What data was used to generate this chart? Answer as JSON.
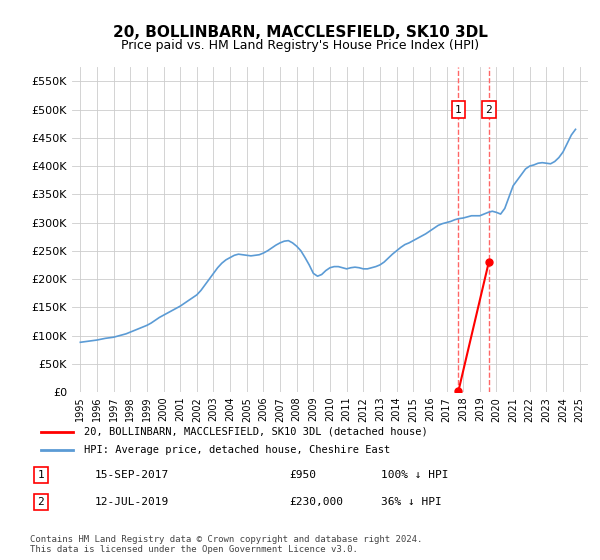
{
  "title": "20, BOLLINBARN, MACCLESFIELD, SK10 3DL",
  "subtitle": "Price paid vs. HM Land Registry's House Price Index (HPI)",
  "title_fontsize": 12,
  "subtitle_fontsize": 10,
  "ylim": [
    0,
    575000
  ],
  "yticks": [
    0,
    50000,
    100000,
    150000,
    200000,
    250000,
    300000,
    350000,
    400000,
    450000,
    500000,
    550000
  ],
  "ytick_labels": [
    "£0",
    "£50K",
    "£100K",
    "£150K",
    "£200K",
    "£250K",
    "£300K",
    "£350K",
    "£400K",
    "£450K",
    "£500K",
    "£550K"
  ],
  "xlim_start": 1995.0,
  "xlim_end": 2025.5,
  "hpi_color": "#5b9bd5",
  "price_color": "#ff0000",
  "vline_color": "#ff6666",
  "background_color": "#ffffff",
  "grid_color": "#cccccc",
  "hpi_x": [
    1995.0,
    1995.25,
    1995.5,
    1995.75,
    1996.0,
    1996.25,
    1996.5,
    1996.75,
    1997.0,
    1997.25,
    1997.5,
    1997.75,
    1998.0,
    1998.25,
    1998.5,
    1998.75,
    1999.0,
    1999.25,
    1999.5,
    1999.75,
    2000.0,
    2000.25,
    2000.5,
    2000.75,
    2001.0,
    2001.25,
    2001.5,
    2001.75,
    2002.0,
    2002.25,
    2002.5,
    2002.75,
    2003.0,
    2003.25,
    2003.5,
    2003.75,
    2004.0,
    2004.25,
    2004.5,
    2004.75,
    2005.0,
    2005.25,
    2005.5,
    2005.75,
    2006.0,
    2006.25,
    2006.5,
    2006.75,
    2007.0,
    2007.25,
    2007.5,
    2007.75,
    2008.0,
    2008.25,
    2008.5,
    2008.75,
    2009.0,
    2009.25,
    2009.5,
    2009.75,
    2010.0,
    2010.25,
    2010.5,
    2010.75,
    2011.0,
    2011.25,
    2011.5,
    2011.75,
    2012.0,
    2012.25,
    2012.5,
    2012.75,
    2013.0,
    2013.25,
    2013.5,
    2013.75,
    2014.0,
    2014.25,
    2014.5,
    2014.75,
    2015.0,
    2015.25,
    2015.5,
    2015.75,
    2016.0,
    2016.25,
    2016.5,
    2016.75,
    2017.0,
    2017.25,
    2017.5,
    2017.75,
    2018.0,
    2018.25,
    2018.5,
    2018.75,
    2019.0,
    2019.25,
    2019.5,
    2019.75,
    2020.0,
    2020.25,
    2020.5,
    2020.75,
    2021.0,
    2021.25,
    2021.5,
    2021.75,
    2022.0,
    2022.25,
    2022.5,
    2022.75,
    2023.0,
    2023.25,
    2023.5,
    2023.75,
    2024.0,
    2024.25,
    2024.5,
    2024.75
  ],
  "hpi_y": [
    88000,
    89000,
    90000,
    91000,
    92000,
    93500,
    95000,
    96000,
    97000,
    99000,
    101000,
    103000,
    106000,
    109000,
    112000,
    115000,
    118000,
    122000,
    127000,
    132000,
    136000,
    140000,
    144000,
    148000,
    152000,
    157000,
    162000,
    167000,
    172000,
    180000,
    190000,
    200000,
    210000,
    220000,
    228000,
    234000,
    238000,
    242000,
    244000,
    243000,
    242000,
    241000,
    242000,
    243000,
    246000,
    250000,
    255000,
    260000,
    264000,
    267000,
    268000,
    264000,
    258000,
    250000,
    238000,
    225000,
    210000,
    205000,
    208000,
    215000,
    220000,
    222000,
    222000,
    220000,
    218000,
    220000,
    221000,
    220000,
    218000,
    218000,
    220000,
    222000,
    225000,
    230000,
    237000,
    244000,
    250000,
    256000,
    261000,
    264000,
    268000,
    272000,
    276000,
    280000,
    285000,
    290000,
    295000,
    298000,
    300000,
    302000,
    305000,
    307000,
    308000,
    310000,
    312000,
    312000,
    312000,
    315000,
    318000,
    320000,
    318000,
    315000,
    325000,
    345000,
    365000,
    375000,
    385000,
    395000,
    400000,
    402000,
    405000,
    406000,
    405000,
    404000,
    408000,
    415000,
    425000,
    440000,
    455000,
    465000
  ],
  "sale1_x": 2017.71,
  "sale1_y": 950,
  "sale1_label": "1",
  "sale1_date": "15-SEP-2017",
  "sale1_price": "£950",
  "sale1_hpi": "100% ↓ HPI",
  "sale2_x": 2019.54,
  "sale2_y": 230000,
  "sale2_label": "2",
  "sale2_date": "12-JUL-2019",
  "sale2_price": "£230,000",
  "sale2_hpi": "36% ↓ HPI",
  "legend_label1": "20, BOLLINBARN, MACCLESFIELD, SK10 3DL (detached house)",
  "legend_label2": "HPI: Average price, detached house, Cheshire East",
  "footnote": "Contains HM Land Registry data © Crown copyright and database right 2024.\nThis data is licensed under the Open Government Licence v3.0."
}
